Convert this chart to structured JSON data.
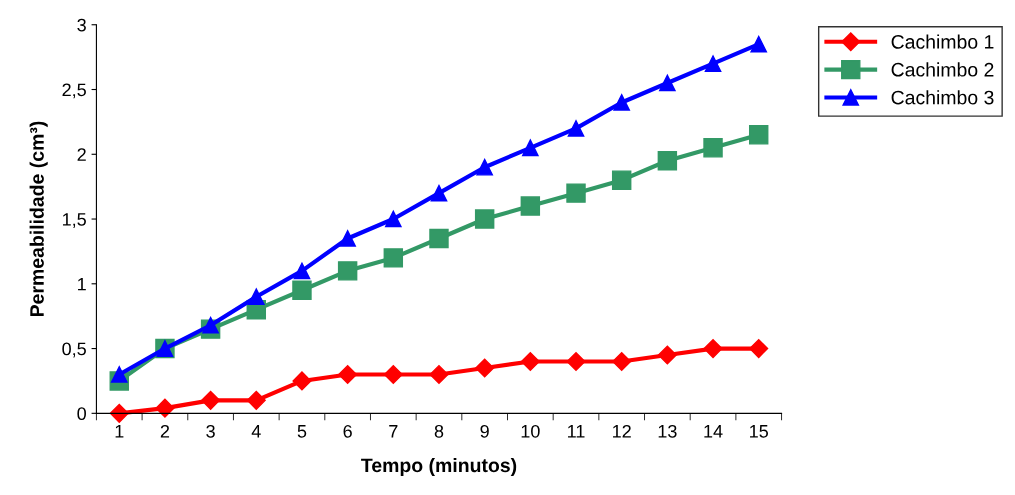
{
  "chart_data": {
    "type": "line",
    "xlabel": "Tempo (minutos)",
    "ylabel": "Permeabilidade (cm³)",
    "categories": [
      "1",
      "2",
      "3",
      "4",
      "5",
      "6",
      "7",
      "8",
      "9",
      "10",
      "11",
      "12",
      "13",
      "14",
      "15"
    ],
    "series": [
      {
        "name": "Cachimbo 1",
        "color": "#ff0000",
        "marker": "diamond",
        "values": [
          0,
          0.04,
          0.1,
          0.1,
          0.25,
          0.3,
          0.3,
          0.3,
          0.35,
          0.4,
          0.4,
          0.4,
          0.45,
          0.5,
          0.5
        ]
      },
      {
        "name": "Cachimbo 2",
        "color": "#339966",
        "marker": "square",
        "values": [
          0.25,
          0.5,
          0.65,
          0.8,
          0.95,
          1.1,
          1.2,
          1.35,
          1.5,
          1.6,
          1.7,
          1.8,
          1.95,
          2.05,
          2.15
        ]
      },
      {
        "name": "Cachimbo 3",
        "color": "#0000ff",
        "marker": "triangle",
        "values": [
          0.3,
          0.5,
          0.68,
          0.9,
          1.1,
          1.35,
          1.5,
          1.7,
          1.9,
          2.05,
          2.2,
          2.4,
          2.55,
          2.7,
          2.85
        ]
      }
    ],
    "ylim": [
      0,
      3
    ],
    "yticks": [
      0,
      {
        "value": 0.5,
        "label": "0,5"
      },
      1,
      {
        "value": 1.5,
        "label": "1,5"
      },
      2,
      {
        "value": 2.5,
        "label": "2,5"
      },
      3
    ],
    "grid": false,
    "legend": "top right",
    "line_style": "solid"
  }
}
